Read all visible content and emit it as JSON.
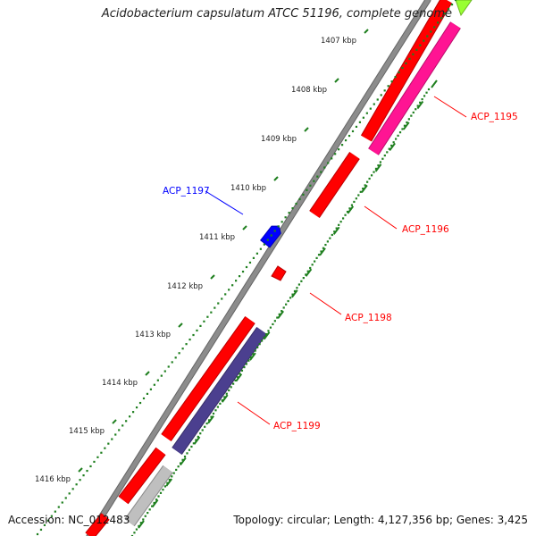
{
  "title": "Acidobacterium capsulatum ATCC 51196, complete genome",
  "footer": {
    "accession": "Accession: NC_012483",
    "summary": "Topology: circular; Length: 4,127,356 bp; Genes: 3,425"
  },
  "ruler": {
    "labels": [
      "1407 kbp",
      "1408 kbp",
      "1409 kbp",
      "1410 kbp",
      "1411 kbp",
      "1412 kbp",
      "1413 kbp",
      "1414 kbp",
      "1415 kbp",
      "1416 kbp"
    ]
  },
  "genes": [
    {
      "label": "ACP_1195",
      "color": "#ff0000"
    },
    {
      "label": "ACP_1196",
      "color": "#ff0000"
    },
    {
      "label": "ACP_1197",
      "color": "#0000ff"
    },
    {
      "label": "ACP_1198",
      "color": "#ff0000"
    },
    {
      "label": "ACP_1199",
      "color": "#ff0000"
    }
  ],
  "colors": {
    "backbone": "#8c8c8c",
    "forward_cds": "#ff0000",
    "reverse_cds": "#0000ff",
    "pink_feature": "#ff1493",
    "purple_feature": "#4b3f8f",
    "gray_feature": "#bfbfbf",
    "green_feature": "#99ff33",
    "tick": "#1f7f1f"
  }
}
